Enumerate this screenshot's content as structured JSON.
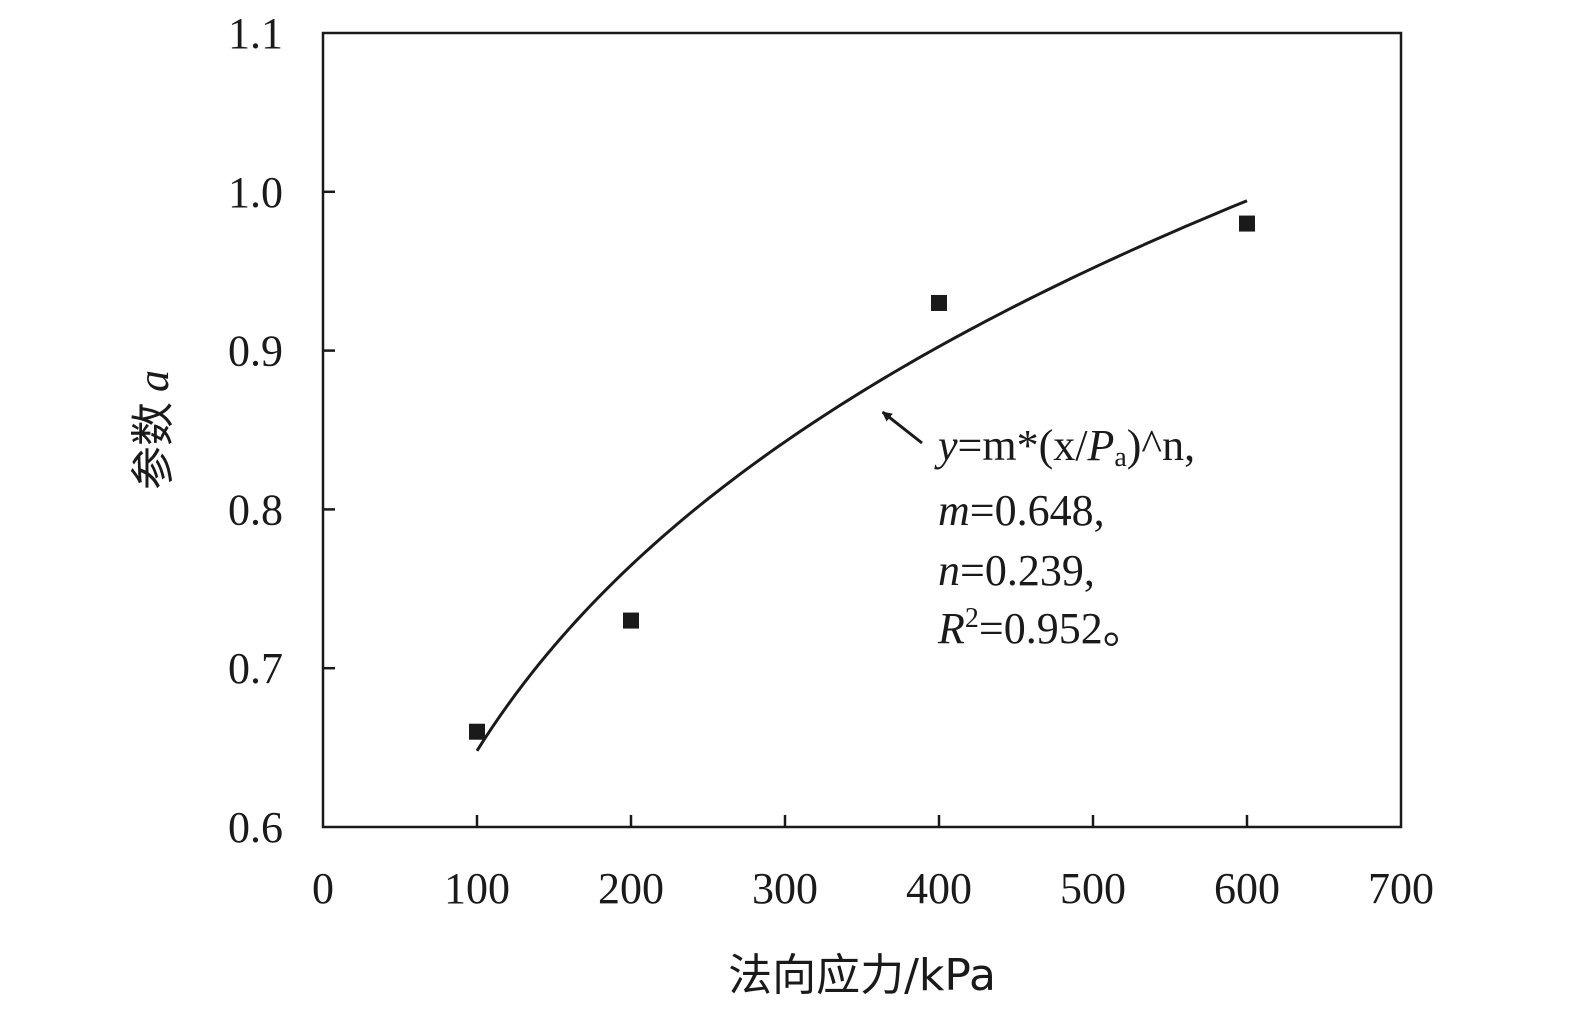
{
  "chart_data": {
    "type": "scatter",
    "title": "",
    "xlabel": "法向应力/kPa",
    "ylabel_text": "参数",
    "ylabel_var": "a",
    "xlim": [
      0,
      700
    ],
    "ylim": [
      0.6,
      1.1
    ],
    "xticks": [
      0,
      100,
      200,
      300,
      400,
      500,
      600,
      700
    ],
    "xtick_labels": [
      "0",
      "100",
      "200",
      "300",
      "400",
      "500",
      "600",
      "700"
    ],
    "yticks": [
      0.6,
      0.7,
      0.8,
      0.9,
      1.0,
      1.1
    ],
    "ytick_labels": [
      "0.6",
      "0.7",
      "0.8",
      "0.9",
      "1.0",
      "1.1"
    ],
    "grid": false,
    "series": [
      {
        "x": [
          100,
          200,
          400,
          600
        ],
        "y": [
          0.66,
          0.73,
          0.93,
          0.98
        ]
      }
    ],
    "fit": {
      "form": "y=m*(x/Pa)^n",
      "m": 0.648,
      "n": 0.239,
      "Pa": 100,
      "x_range": [
        100,
        600
      ]
    },
    "annotation": {
      "eq_y": "y",
      "eq_mid": "=m*(x/",
      "eq_P": "P",
      "eq_sub": "a",
      "eq_tail": ")^n,",
      "m_label": "m",
      "m_value": "=0.648,",
      "n_label": "n",
      "n_value": "=0.239,",
      "r_label": "R",
      "r_sup": "2",
      "r_value": "=0.952。",
      "arrow_target": [
        353,
        0.8701
      ]
    },
    "colors": {
      "marks": "#1a1a1a"
    }
  }
}
